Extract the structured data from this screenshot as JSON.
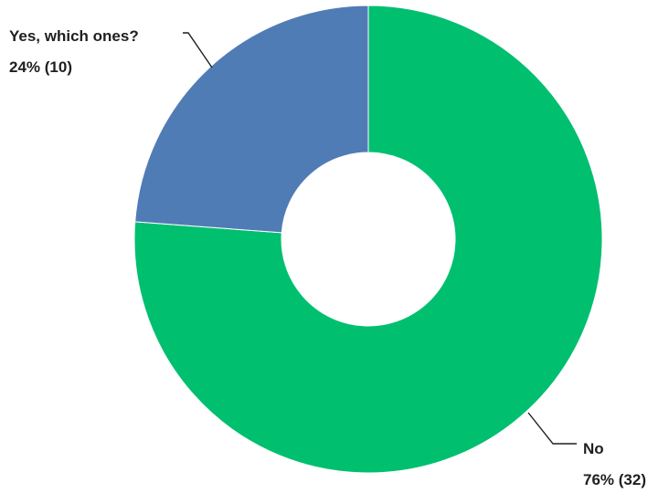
{
  "chart_data": {
    "type": "pie",
    "donut": true,
    "slices": [
      {
        "label": "No",
        "value_text": "76% (32)",
        "percent": 76,
        "count": 32,
        "color": "#00bf6f"
      },
      {
        "label": "Yes, which ones?",
        "value_text": "24% (10)",
        "percent": 24,
        "count": 10,
        "color": "#507cb6"
      }
    ],
    "legend": "none"
  }
}
